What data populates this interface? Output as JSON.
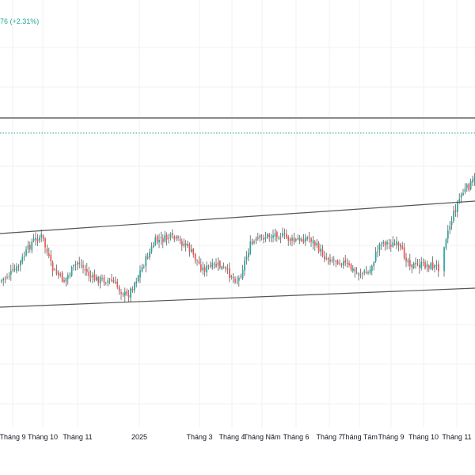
{
  "header": {
    "change_text": "76 (+2.31%)"
  },
  "colors": {
    "up": "#26a69a",
    "down": "#ef5350",
    "wick": "#444444",
    "trendline": "#555555",
    "resistance": "#444444",
    "price_line": "#26a69a",
    "grid": "#f2f2f2",
    "background": "#ffffff"
  },
  "chart_data": {
    "type": "candlestick",
    "title": "",
    "x_tick_labels": [
      "Tháng 9",
      "Tháng 10",
      "Tháng 11",
      "2025",
      "Tháng 3",
      "Tháng 4",
      "Tháng Năm",
      "Tháng 6",
      "Tháng 7",
      "Tháng Tám",
      "Tháng 9",
      "Tháng 10",
      "Tháng 11"
    ],
    "grid": true,
    "price_axis_visible": false,
    "annotations": [
      "ascending channel upper line",
      "ascending channel lower line",
      "horizontal resistance line",
      "current price dotted line"
    ],
    "approx_close_path": [
      {
        "month": "Tháng 9",
        "level": "channel-low"
      },
      {
        "month": "Tháng 10",
        "level": "channel-high"
      },
      {
        "month": "Tháng 11",
        "level": "mid"
      },
      {
        "month": "2025",
        "level": "mid-low"
      },
      {
        "month": "Tháng 3",
        "level": "channel-high"
      },
      {
        "month": "Tháng 4",
        "level": "channel-low"
      },
      {
        "month": "Tháng Năm",
        "level": "channel-high"
      },
      {
        "month": "Tháng 6",
        "level": "mid"
      },
      {
        "month": "Tháng 7",
        "level": "mid"
      },
      {
        "month": "Tháng Tám",
        "level": "channel-low"
      },
      {
        "month": "Tháng 9",
        "level": "mid-high"
      },
      {
        "month": "Tháng 10",
        "level": "mid-low"
      },
      {
        "month": "Tháng 11",
        "level": "breakout-high"
      }
    ]
  }
}
